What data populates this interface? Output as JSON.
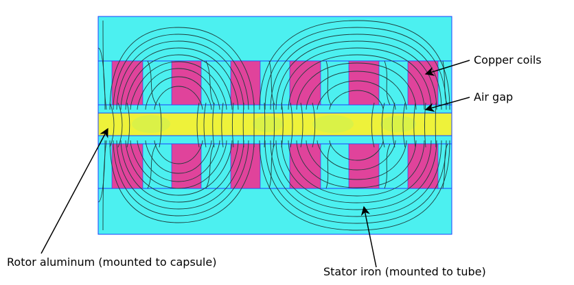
{
  "labels": {
    "copper_coils": "Copper coils",
    "air_gap": "Air gap",
    "rotor_aluminum": "Rotor aluminum (mounted to capsule)",
    "stator_iron": "Stator iron (mounted to tube)"
  },
  "colors": {
    "stator_iron": "#4cf0f0",
    "copper_coils": "#e0439b",
    "rotor_aluminum": "#eef23a",
    "outline": "#1a3cff",
    "flux_lines": "#1e3b3b",
    "arrows": "#000000"
  },
  "structure": {
    "coils_per_row": 6,
    "coil_rows": 2
  }
}
